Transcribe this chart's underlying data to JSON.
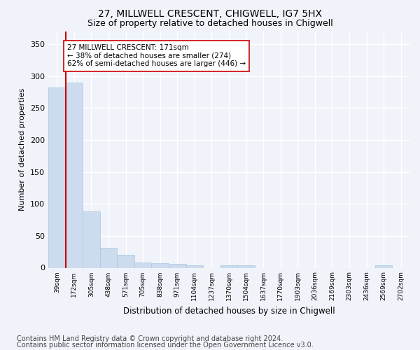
{
  "title1": "27, MILLWELL CRESCENT, CHIGWELL, IG7 5HX",
  "title2": "Size of property relative to detached houses in Chigwell",
  "xlabel": "Distribution of detached houses by size in Chigwell",
  "ylabel": "Number of detached properties",
  "footnote1": "Contains HM Land Registry data © Crown copyright and database right 2024.",
  "footnote2": "Contains public sector information licensed under the Open Government Licence v3.0.",
  "bin_labels": [
    "39sqm",
    "172sqm",
    "305sqm",
    "438sqm",
    "571sqm",
    "705sqm",
    "838sqm",
    "971sqm",
    "1104sqm",
    "1237sqm",
    "1370sqm",
    "1504sqm",
    "1637sqm",
    "1770sqm",
    "1903sqm",
    "2036sqm",
    "2169sqm",
    "2303sqm",
    "2436sqm",
    "2569sqm",
    "2702sqm"
  ],
  "bar_heights": [
    282,
    290,
    88,
    31,
    20,
    8,
    7,
    6,
    4,
    0,
    4,
    4,
    0,
    0,
    0,
    0,
    0,
    0,
    0,
    4,
    0
  ],
  "bar_color": "#ccdcee",
  "bar_edge_color": "#aac4de",
  "property_line_x": 0.5,
  "red_line_color": "#cc0000",
  "annotation_text": "27 MILLWELL CRESCENT: 171sqm\n← 38% of detached houses are smaller (274)\n62% of semi-detached houses are larger (446) →",
  "annotation_box_color": "white",
  "annotation_box_edge_color": "#cc0000",
  "ylim": [
    0,
    370
  ],
  "yticks": [
    0,
    50,
    100,
    150,
    200,
    250,
    300,
    350
  ],
  "bg_color": "#f0f4fa",
  "plot_bg_color": "#f0f4fa",
  "grid_color": "white",
  "title1_fontsize": 10,
  "title2_fontsize": 9,
  "footnote_fontsize": 7
}
